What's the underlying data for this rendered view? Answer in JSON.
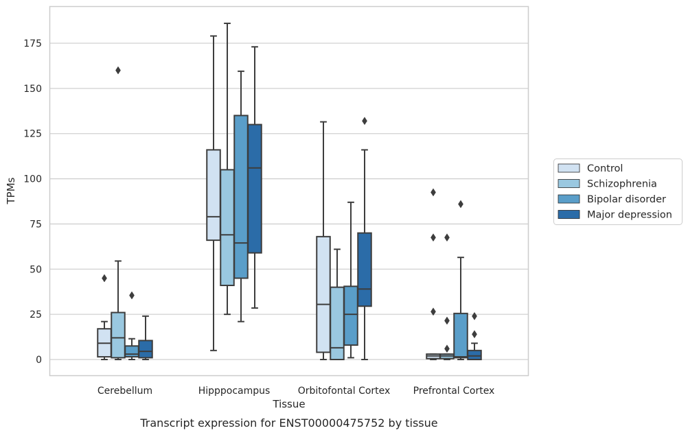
{
  "chart_data": {
    "type": "box",
    "title": "",
    "caption": "Transcript expression for ENST00000475752 by tissue",
    "xlabel": "Tissue",
    "ylabel": "TPMs",
    "ylim": [
      -9,
      197
    ],
    "yticks": [
      0,
      25,
      50,
      75,
      100,
      125,
      150,
      175
    ],
    "grid": "horizontal",
    "legend_position": "right",
    "categories": [
      "Cerebellum",
      "Hipppocampus",
      "Orbitofontal Cortex",
      "Prefrontal Cortex"
    ],
    "series": [
      {
        "name": "Control",
        "color": "#d1e2f2",
        "boxes": [
          {
            "whislo": 0,
            "q1": 1.5,
            "med": 9,
            "q3": 17,
            "whishi": 21,
            "fliers": [
              45
            ]
          },
          {
            "whislo": 5,
            "q1": 66,
            "med": 79,
            "q3": 116,
            "whishi": 179,
            "fliers": []
          },
          {
            "whislo": 0,
            "q1": 4,
            "med": 30.5,
            "q3": 68,
            "whishi": 131.5,
            "fliers": []
          },
          {
            "whislo": 0,
            "q1": 0.5,
            "med": 2,
            "q3": 3,
            "whishi": 3,
            "fliers": [
              92.5,
              67.5,
              26.5
            ]
          }
        ]
      },
      {
        "name": "Schizophrenia",
        "color": "#9ac8e0",
        "boxes": [
          {
            "whislo": 0,
            "q1": 1,
            "med": 12,
            "q3": 26,
            "whishi": 54.5,
            "fliers": [
              160
            ]
          },
          {
            "whislo": 25,
            "q1": 41,
            "med": 69,
            "q3": 105,
            "whishi": 186,
            "fliers": []
          },
          {
            "whislo": 0,
            "q1": 0,
            "med": 6.5,
            "q3": 40,
            "whishi": 61,
            "fliers": []
          },
          {
            "whislo": 0,
            "q1": 0.5,
            "med": 2,
            "q3": 3,
            "whishi": 3,
            "fliers": [
              67.5,
              21.5,
              6
            ]
          }
        ]
      },
      {
        "name": "Bipolar disorder",
        "color": "#5a9ec9",
        "boxes": [
          {
            "whislo": 0,
            "q1": 1.5,
            "med": 3,
            "q3": 7.5,
            "whishi": 11.5,
            "fliers": [
              35.5
            ]
          },
          {
            "whislo": 21,
            "q1": 45,
            "med": 64.5,
            "q3": 135,
            "whishi": 159.5,
            "fliers": []
          },
          {
            "whislo": 1,
            "q1": 8,
            "med": 25,
            "q3": 40.5,
            "whishi": 87,
            "fliers": []
          },
          {
            "whislo": 0,
            "q1": 1,
            "med": 1.5,
            "q3": 25.5,
            "whishi": 56.5,
            "fliers": [
              86
            ]
          }
        ]
      },
      {
        "name": "Major depression",
        "color": "#2b6ca8",
        "boxes": [
          {
            "whislo": 0,
            "q1": 1,
            "med": 4.5,
            "q3": 10.5,
            "whishi": 24,
            "fliers": []
          },
          {
            "whislo": 28.5,
            "q1": 59,
            "med": 106,
            "q3": 130,
            "whishi": 173,
            "fliers": []
          },
          {
            "whislo": 0,
            "q1": 29.5,
            "med": 39,
            "q3": 70,
            "whishi": 116,
            "fliers": [
              132
            ]
          },
          {
            "whislo": 0,
            "q1": 0,
            "med": 2,
            "q3": 5,
            "whishi": 9,
            "fliers": [
              24,
              14
            ]
          }
        ]
      }
    ]
  }
}
